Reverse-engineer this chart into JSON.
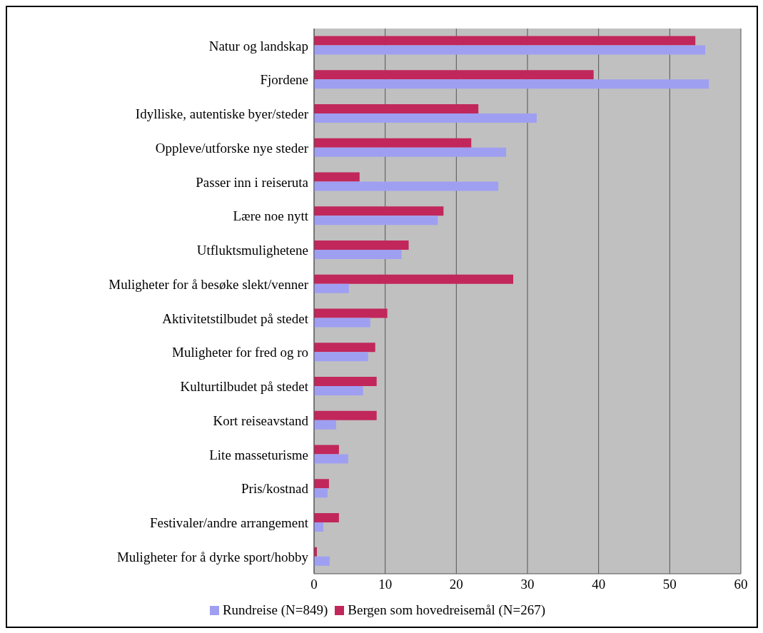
{
  "chart_data": {
    "type": "bar",
    "orientation": "horizontal",
    "categories": [
      "Natur og landskap",
      "Fjordene",
      "Idylliske, autentiske byer/steder",
      "Oppleve/utforske nye steder",
      "Passer inn i reiseruta",
      "Lære noe nytt",
      "Utfluktsmulighetene",
      "Muligheter for å besøke slekt/venner",
      "Aktivitetstilbudet på stedet",
      "Muligheter for fred og ro",
      "Kulturtilbudet på stedet",
      "Kort reiseavstand",
      "Lite masseturisme",
      "Pris/kostnad",
      "Festivaler/andre arrangement",
      "Muligheter for å dyrke sport/hobby"
    ],
    "series": [
      {
        "name": "Rundreise (N=849)",
        "color": "#9f9ff2",
        "values": [
          55,
          55.5,
          31.3,
          27,
          25.9,
          17.4,
          12.3,
          4.9,
          7.9,
          7.6,
          6.9,
          3.1,
          4.8,
          1.9,
          1.3,
          2.2
        ]
      },
      {
        "name": "Bergen som hovedreisemål (N=267)",
        "color": "#c1275b",
        "values": [
          53.6,
          39.3,
          23.1,
          22.1,
          6.4,
          18.2,
          13.3,
          28,
          10.3,
          8.6,
          8.8,
          8.8,
          3.5,
          2.1,
          3.5,
          0.4
        ]
      }
    ],
    "xlim": [
      0,
      60
    ],
    "xticks": [
      0,
      10,
      20,
      30,
      40,
      50,
      60
    ],
    "grid": "x",
    "legend": "bottom"
  }
}
